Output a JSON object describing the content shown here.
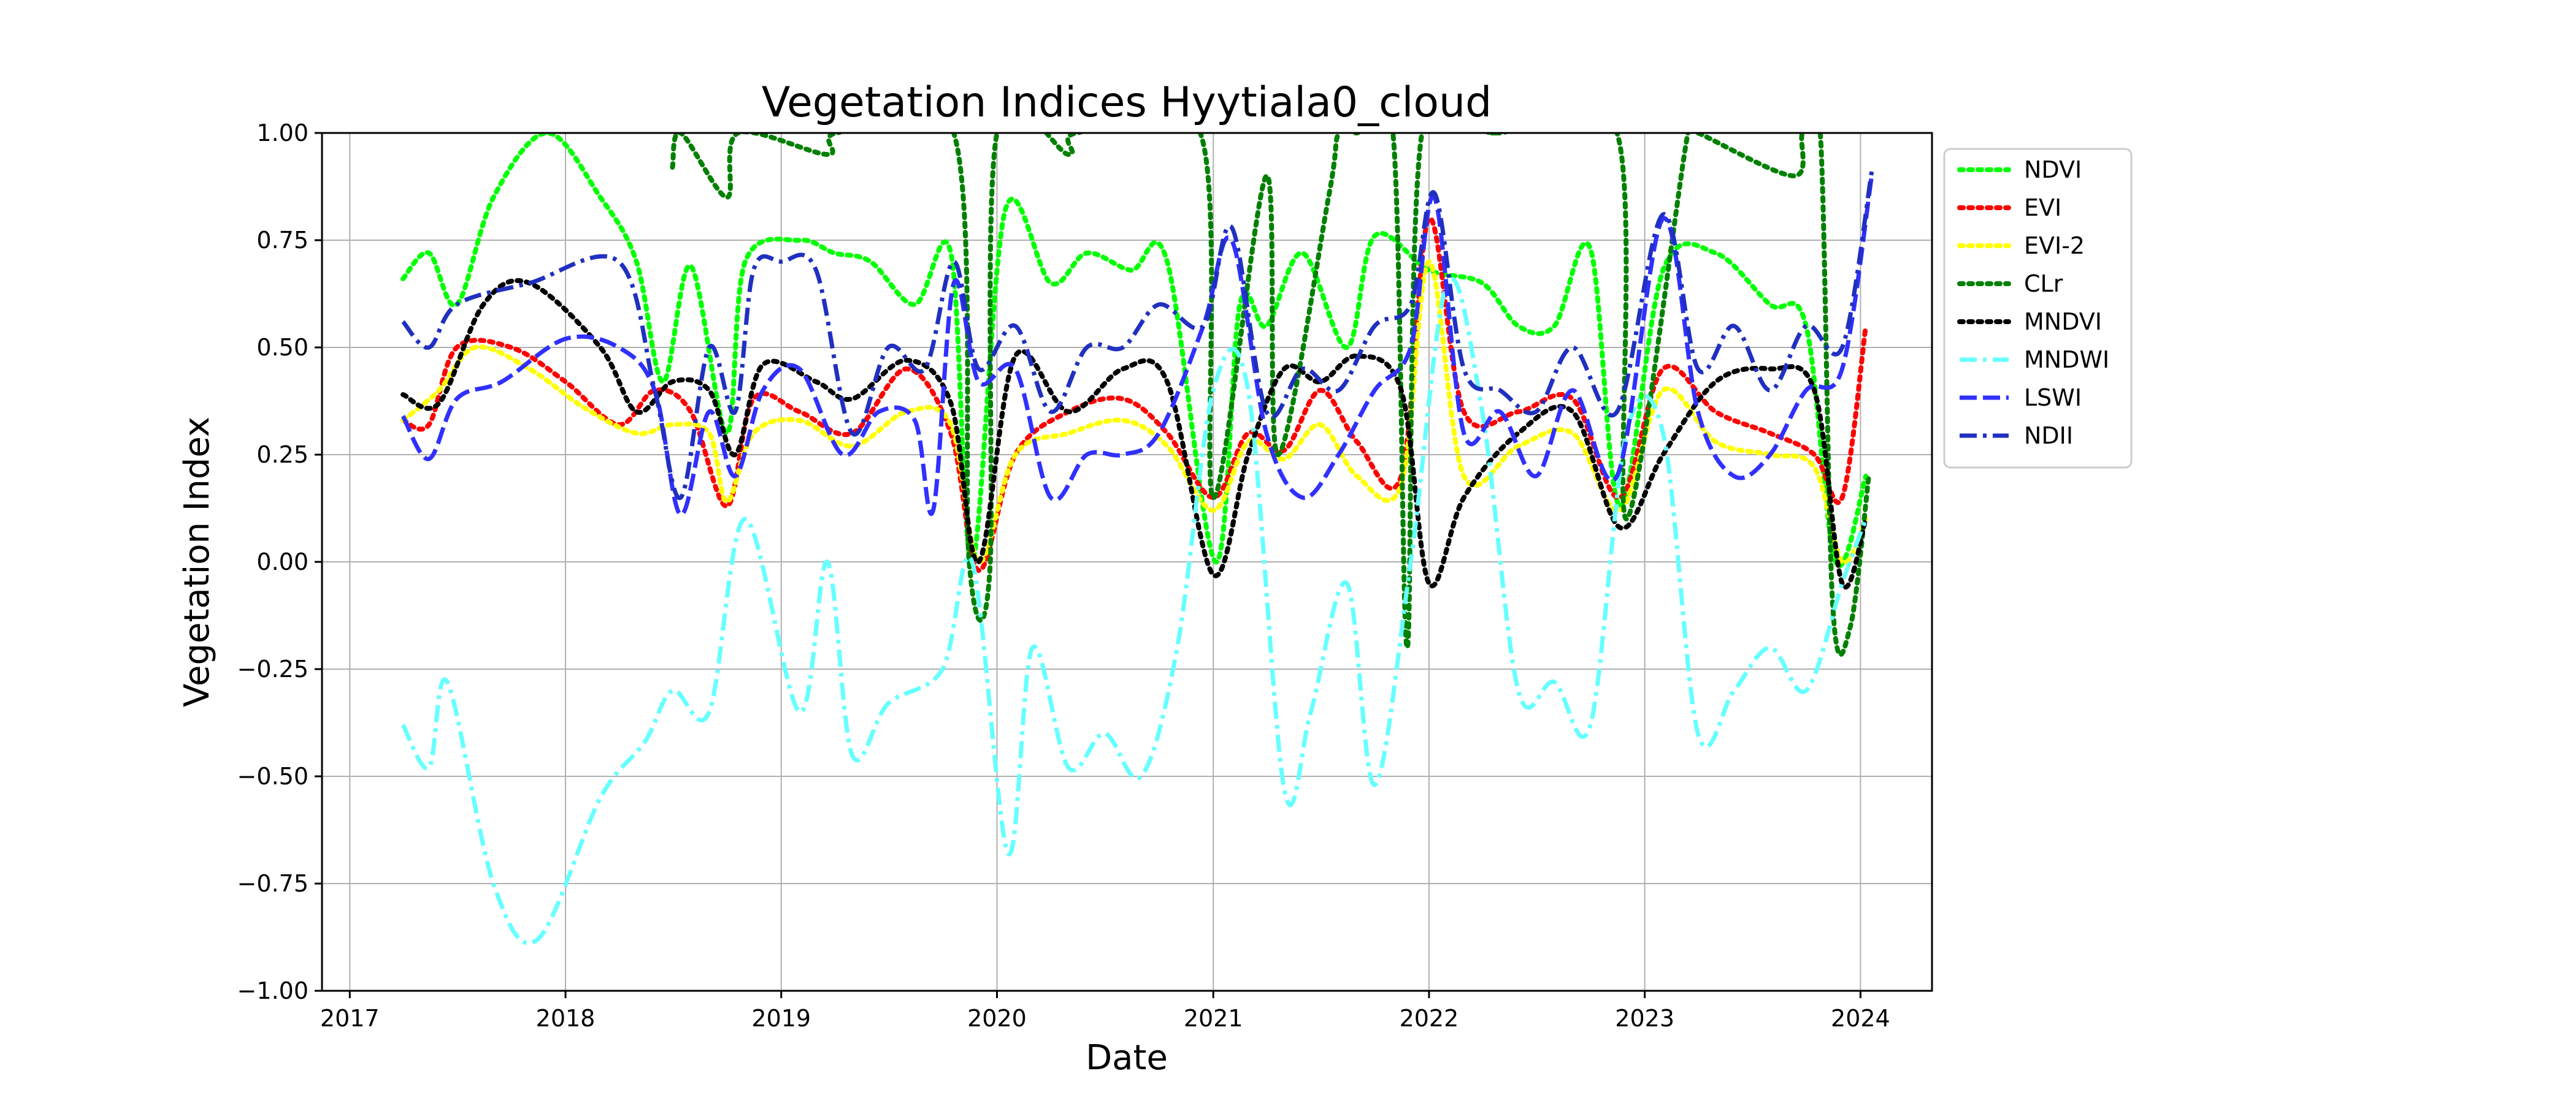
{
  "chart_data": {
    "type": "line",
    "title": "Vegetation Indices Hyytiala0_cloud",
    "xlabel": "Date",
    "ylabel": "Vegetation Index",
    "xlim": [
      "2016-11-15",
      "2024-05-01"
    ],
    "ylim": [
      -1.0,
      1.0
    ],
    "x_ticks": [
      "2017",
      "2018",
      "2019",
      "2020",
      "2021",
      "2022",
      "2023",
      "2024"
    ],
    "y_ticks": [
      "1.00",
      "0.75",
      "0.50",
      "0.25",
      "0.00",
      "−0.25",
      "−0.50",
      "−0.75",
      "−1.00"
    ],
    "grid": true,
    "legend_position": "outside-right-top",
    "series": [
      {
        "name": "NDVI",
        "color": "#00ff00",
        "style": "dotted",
        "x": [
          "2017-04-01",
          "2017-05-15",
          "2017-07-01",
          "2017-09-01",
          "2017-12-01",
          "2018-03-01",
          "2018-05-01",
          "2018-06-15",
          "2018-08-01",
          "2018-10-01",
          "2018-11-01",
          "2019-02-01",
          "2019-04-01",
          "2019-06-01",
          "2019-08-15",
          "2019-10-15",
          "2019-11-20",
          "2020-01-15",
          "2020-04-01",
          "2020-06-01",
          "2020-08-15",
          "2020-10-15",
          "2021-01-05",
          "2021-02-15",
          "2021-04-01",
          "2021-06-01",
          "2021-08-15",
          "2021-10-01",
          "2022-01-01",
          "2022-04-01",
          "2022-06-01",
          "2022-08-01",
          "2022-10-01",
          "2022-11-20",
          "2023-02-01",
          "2023-05-01",
          "2023-08-01",
          "2023-10-01",
          "2023-11-20",
          "2024-01-10"
        ],
        "y": [
          0.66,
          0.72,
          0.6,
          0.85,
          1.0,
          0.85,
          0.7,
          0.42,
          0.69,
          0.3,
          0.7,
          0.75,
          0.72,
          0.7,
          0.6,
          0.72,
          0.0,
          0.82,
          0.65,
          0.72,
          0.68,
          0.7,
          0.0,
          0.6,
          0.55,
          0.72,
          0.5,
          0.76,
          0.68,
          0.65,
          0.55,
          0.55,
          0.73,
          0.13,
          0.68,
          0.72,
          0.6,
          0.55,
          0.0,
          0.2
        ]
      },
      {
        "name": "EVI",
        "color": "#ff0000",
        "style": "dotted",
        "x": [
          "2017-04-01",
          "2017-05-15",
          "2017-07-01",
          "2017-10-01",
          "2018-01-01",
          "2018-04-01",
          "2018-06-01",
          "2018-08-01",
          "2018-10-01",
          "2018-11-15",
          "2019-02-01",
          "2019-05-01",
          "2019-08-01",
          "2019-10-15",
          "2019-12-01",
          "2020-02-01",
          "2020-05-01",
          "2020-08-01",
          "2020-10-15",
          "2021-01-01",
          "2021-03-01",
          "2021-05-01",
          "2021-07-01",
          "2021-09-01",
          "2021-11-15",
          "2022-01-01",
          "2022-03-01",
          "2022-06-01",
          "2022-09-01",
          "2022-11-20",
          "2023-02-01",
          "2023-05-01",
          "2023-08-01",
          "2023-10-15",
          "2023-12-01",
          "2024-01-10"
        ],
        "y": [
          0.33,
          0.32,
          0.5,
          0.5,
          0.42,
          0.32,
          0.4,
          0.35,
          0.13,
          0.38,
          0.35,
          0.3,
          0.45,
          0.3,
          -0.02,
          0.25,
          0.35,
          0.38,
          0.3,
          0.15,
          0.3,
          0.26,
          0.4,
          0.28,
          0.2,
          0.8,
          0.35,
          0.35,
          0.38,
          0.15,
          0.45,
          0.35,
          0.3,
          0.25,
          0.15,
          0.55
        ]
      },
      {
        "name": "EVI-2",
        "color": "#ffff00",
        "style": "dotted",
        "x": [
          "2017-04-01",
          "2017-06-01",
          "2017-08-01",
          "2017-11-01",
          "2018-02-01",
          "2018-05-01",
          "2018-07-01",
          "2018-09-01",
          "2018-10-01",
          "2018-11-15",
          "2019-02-01",
          "2019-05-01",
          "2019-08-01",
          "2019-10-15",
          "2019-12-01",
          "2020-02-01",
          "2020-05-01",
          "2020-08-01",
          "2020-10-15",
          "2021-01-01",
          "2021-03-01",
          "2021-05-01",
          "2021-07-01",
          "2021-09-01",
          "2021-11-15",
          "2022-01-01",
          "2022-03-01",
          "2022-06-01",
          "2022-09-01",
          "2022-11-20",
          "2023-02-01",
          "2023-05-01",
          "2023-08-01",
          "2023-10-15",
          "2023-12-01",
          "2024-01-10"
        ],
        "y": [
          0.33,
          0.4,
          0.5,
          0.45,
          0.36,
          0.3,
          0.32,
          0.3,
          0.14,
          0.3,
          0.33,
          0.27,
          0.35,
          0.32,
          0.0,
          0.25,
          0.3,
          0.33,
          0.27,
          0.12,
          0.28,
          0.24,
          0.32,
          0.2,
          0.18,
          0.7,
          0.2,
          0.27,
          0.3,
          0.12,
          0.4,
          0.28,
          0.25,
          0.22,
          0.0,
          0.1
        ]
      },
      {
        "name": "CLr",
        "color": "#008000",
        "style": "dotted",
        "x": [
          "2018-07-01",
          "2018-07-15",
          "2018-10-01",
          "2018-10-20",
          "2019-03-20",
          "2019-04-05",
          "2019-10-20",
          "2019-11-15",
          "2019-12-20",
          "2020-01-01",
          "2020-05-01",
          "2020-05-15",
          "2020-12-10",
          "2021-01-01",
          "2021-04-01",
          "2021-04-20",
          "2021-07-15",
          "2021-08-01",
          "2021-09-01",
          "2021-11-01",
          "2021-11-25",
          "2021-12-20",
          "2022-04-15",
          "2022-05-01",
          "2022-11-15",
          "2022-12-01",
          "2023-03-15",
          "2023-04-01",
          "2023-09-10",
          "2023-09-25",
          "2023-10-25",
          "2023-11-15",
          "2023-12-15",
          "2024-01-15"
        ],
        "y": [
          0.92,
          1.0,
          0.85,
          1.0,
          0.95,
          1.0,
          1.0,
          0.0,
          -0.02,
          1.0,
          0.95,
          1.0,
          1.0,
          0.15,
          0.9,
          0.25,
          0.85,
          1.0,
          1.0,
          1.0,
          -0.2,
          1.0,
          1.0,
          1.0,
          1.0,
          0.1,
          1.0,
          1.0,
          0.9,
          1.0,
          1.0,
          -0.1,
          -0.15,
          0.2
        ]
      },
      {
        "name": "MNDVI",
        "color": "#000000",
        "style": "dotted",
        "x": [
          "2017-04-01",
          "2017-06-01",
          "2017-08-15",
          "2017-11-01",
          "2018-03-01",
          "2018-05-01",
          "2018-07-01",
          "2018-09-01",
          "2018-10-15",
          "2018-12-01",
          "2019-03-01",
          "2019-05-01",
          "2019-08-01",
          "2019-10-15",
          "2019-12-01",
          "2020-02-01",
          "2020-05-01",
          "2020-08-01",
          "2020-10-15",
          "2021-01-01",
          "2021-03-01",
          "2021-05-01",
          "2021-07-01",
          "2021-09-01",
          "2021-11-15",
          "2022-01-01",
          "2022-03-01",
          "2022-06-01",
          "2022-09-01",
          "2022-11-20",
          "2023-02-01",
          "2023-05-01",
          "2023-08-01",
          "2023-10-15",
          "2023-12-01",
          "2024-01-10"
        ],
        "y": [
          0.39,
          0.37,
          0.6,
          0.65,
          0.5,
          0.35,
          0.42,
          0.4,
          0.25,
          0.46,
          0.42,
          0.38,
          0.47,
          0.37,
          0.0,
          0.48,
          0.35,
          0.45,
          0.42,
          -0.03,
          0.25,
          0.45,
          0.42,
          0.48,
          0.4,
          -0.05,
          0.15,
          0.3,
          0.35,
          0.08,
          0.25,
          0.42,
          0.45,
          0.4,
          -0.05,
          0.1
        ]
      },
      {
        "name": "MNDWI",
        "color": "#66ffff",
        "style": "dashdot",
        "x": [
          "2017-04-01",
          "2017-05-15",
          "2017-06-15",
          "2017-09-01",
          "2017-11-15",
          "2018-03-01",
          "2018-05-15",
          "2018-07-01",
          "2018-09-01",
          "2018-11-01",
          "2019-02-01",
          "2019-03-20",
          "2019-05-01",
          "2019-07-01",
          "2019-10-01",
          "2019-11-20",
          "2020-01-20",
          "2020-03-01",
          "2020-05-01",
          "2020-07-01",
          "2020-09-01",
          "2020-11-01",
          "2021-01-01",
          "2021-03-01",
          "2021-05-01",
          "2021-06-15",
          "2021-08-15",
          "2021-10-01",
          "2021-12-01",
          "2022-02-01",
          "2022-04-01",
          "2022-06-01",
          "2022-08-01",
          "2022-10-01",
          "2022-12-01",
          "2023-02-01",
          "2023-04-01",
          "2023-06-01",
          "2023-08-01",
          "2023-10-01",
          "2023-12-01",
          "2024-01-10"
        ],
        "y": [
          -0.38,
          -0.48,
          -0.28,
          -0.75,
          -0.88,
          -0.55,
          -0.42,
          -0.3,
          -0.35,
          0.1,
          -0.35,
          0.0,
          -0.45,
          -0.33,
          -0.25,
          0.0,
          -0.68,
          -0.2,
          -0.48,
          -0.4,
          -0.5,
          -0.2,
          0.4,
          0.4,
          -0.53,
          -0.35,
          -0.05,
          -0.52,
          0.0,
          0.65,
          0.35,
          -0.3,
          -0.28,
          -0.38,
          0.3,
          0.3,
          -0.4,
          -0.3,
          -0.2,
          -0.3,
          -0.05,
          0.1
        ]
      },
      {
        "name": "LSWI",
        "color": "#3030ff",
        "style": "dashed",
        "x": [
          "2017-04-01",
          "2017-05-15",
          "2017-07-01",
          "2017-09-15",
          "2018-01-01",
          "2018-04-01",
          "2018-06-01",
          "2018-07-15",
          "2018-09-01",
          "2018-10-15",
          "2018-12-01",
          "2019-02-01",
          "2019-04-15",
          "2019-06-15",
          "2019-08-15",
          "2019-09-15",
          "2019-10-20",
          "2019-12-01",
          "2020-02-01",
          "2020-04-01",
          "2020-06-01",
          "2020-08-01",
          "2020-10-01",
          "2020-12-15",
          "2021-02-01",
          "2021-04-01",
          "2021-06-01",
          "2021-08-01",
          "2021-10-01",
          "2021-12-01",
          "2022-01-10",
          "2022-03-01",
          "2022-05-01",
          "2022-07-01",
          "2022-09-01",
          "2022-11-15",
          "2023-02-01",
          "2023-04-01",
          "2023-06-01",
          "2023-08-01",
          "2023-10-01",
          "2023-12-01",
          "2024-01-20"
        ],
        "y": [
          0.34,
          0.24,
          0.38,
          0.42,
          0.52,
          0.5,
          0.4,
          0.11,
          0.35,
          0.2,
          0.4,
          0.45,
          0.25,
          0.35,
          0.33,
          0.12,
          0.65,
          0.42,
          0.45,
          0.15,
          0.25,
          0.25,
          0.3,
          0.55,
          0.75,
          0.3,
          0.15,
          0.25,
          0.4,
          0.5,
          0.85,
          0.3,
          0.35,
          0.2,
          0.4,
          0.2,
          0.8,
          0.35,
          0.2,
          0.25,
          0.4,
          0.45,
          0.9
        ]
      },
      {
        "name": "NDII",
        "color": "#2030c0",
        "style": "dashdot",
        "x": [
          "2017-04-01",
          "2017-05-15",
          "2017-07-01",
          "2017-11-01",
          "2018-04-01",
          "2018-06-01",
          "2018-07-15",
          "2018-09-01",
          "2018-10-15",
          "2018-11-15",
          "2019-01-01",
          "2019-03-01",
          "2019-05-01",
          "2019-07-01",
          "2019-09-01",
          "2019-10-20",
          "2019-12-01",
          "2020-02-01",
          "2020-04-01",
          "2020-06-01",
          "2020-08-01",
          "2020-10-01",
          "2020-12-15",
          "2021-02-01",
          "2021-04-01",
          "2021-06-01",
          "2021-08-01",
          "2021-10-01",
          "2021-12-01",
          "2022-01-10",
          "2022-03-01",
          "2022-05-01",
          "2022-07-01",
          "2022-09-01",
          "2022-11-15",
          "2023-02-01",
          "2023-04-01",
          "2023-06-01",
          "2023-08-01",
          "2023-10-01",
          "2023-12-01",
          "2024-01-20"
        ],
        "y": [
          0.56,
          0.5,
          0.6,
          0.65,
          0.7,
          0.4,
          0.15,
          0.5,
          0.35,
          0.68,
          0.7,
          0.68,
          0.3,
          0.5,
          0.45,
          0.7,
          0.45,
          0.55,
          0.35,
          0.5,
          0.5,
          0.6,
          0.55,
          0.78,
          0.35,
          0.45,
          0.4,
          0.55,
          0.6,
          0.86,
          0.45,
          0.4,
          0.35,
          0.5,
          0.35,
          0.81,
          0.45,
          0.55,
          0.4,
          0.55,
          0.5,
          0.91
        ]
      }
    ]
  }
}
